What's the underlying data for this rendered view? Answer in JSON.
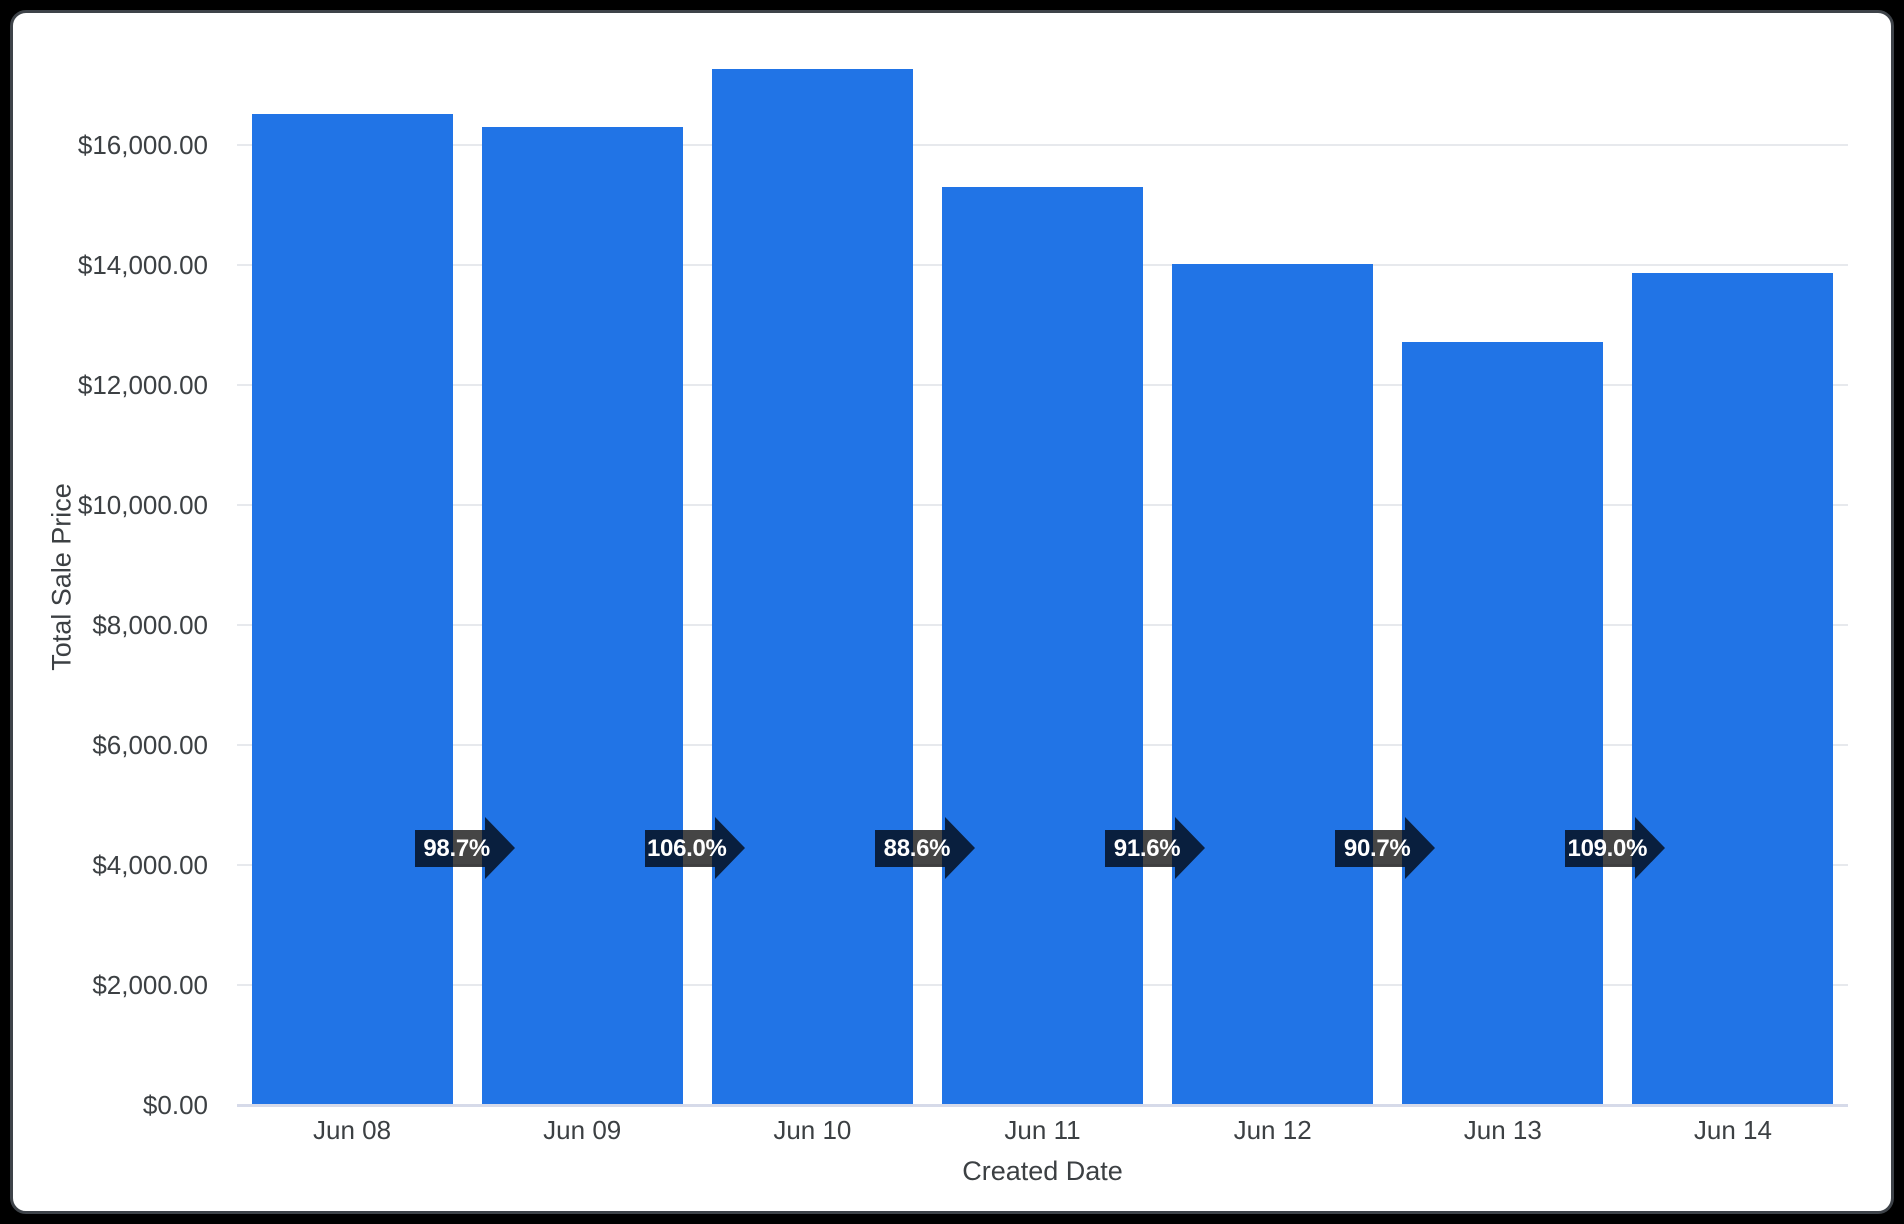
{
  "window": {
    "bg": "#000000",
    "card_bg": "#ffffff",
    "card_border": "#3e4349"
  },
  "chart_data": {
    "type": "bar",
    "title": "",
    "xlabel": "Created Date",
    "ylabel": "Total Sale Price",
    "categories": [
      "Jun 08",
      "Jun 09",
      "Jun 10",
      "Jun 11",
      "Jun 12",
      "Jun 13",
      "Jun 14"
    ],
    "values": [
      16510,
      16295,
      17275,
      15305,
      14020,
      12715,
      13860
    ],
    "percent_change_arrows": [
      "98.7%",
      "106.0%",
      "88.6%",
      "91.6%",
      "90.7%",
      "109.0%"
    ],
    "y_ticks": [
      {
        "label": "$0.00",
        "value": 0
      },
      {
        "label": "$2,000.00",
        "value": 2000
      },
      {
        "label": "$4,000.00",
        "value": 4000
      },
      {
        "label": "$6,000.00",
        "value": 6000
      },
      {
        "label": "$8,000.00",
        "value": 8000
      },
      {
        "label": "$10,000.00",
        "value": 10000
      },
      {
        "label": "$12,000.00",
        "value": 12000
      },
      {
        "label": "$14,000.00",
        "value": 14000
      },
      {
        "label": "$16,000.00",
        "value": 16000
      }
    ],
    "ylim": [
      0,
      17750
    ],
    "grid": true,
    "legend": "none",
    "colors": {
      "bar": "#2174e6",
      "arrow": "rgba(0,0,0,0.73)",
      "arrow_text": "#ffffff",
      "axis_text": "#3c4043",
      "gridline": "#e7e9ed",
      "baseline": "#d6dae9"
    }
  }
}
